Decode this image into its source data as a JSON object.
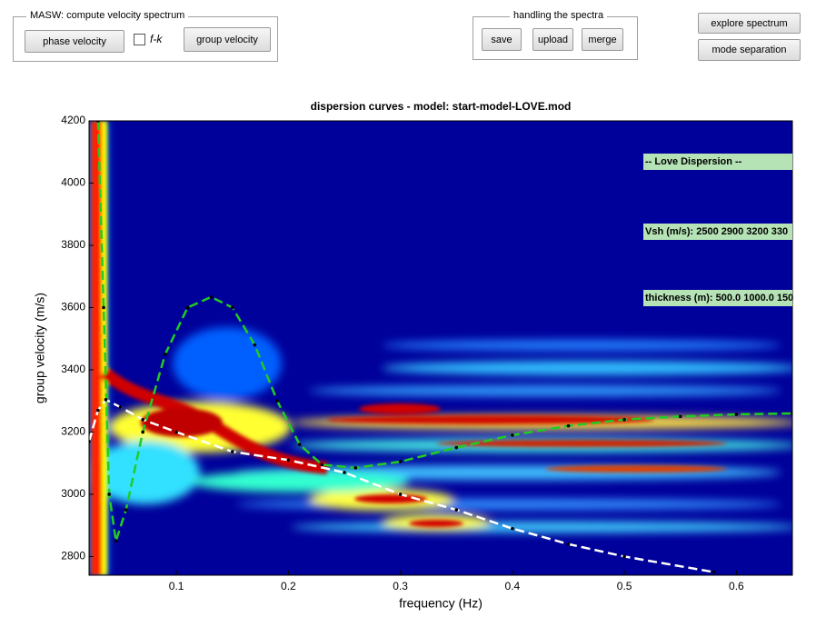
{
  "masw_panel": {
    "title": "MASW: compute velocity spectrum",
    "buttons": [
      "phase velocity",
      "group velocity"
    ],
    "checkbox": "f-k"
  },
  "spectra_panel": {
    "title": "handling the spectra",
    "buttons": [
      "save",
      "upload",
      "merge"
    ]
  },
  "side_buttons": [
    "explore spectrum",
    "mode separation"
  ],
  "chart_data": {
    "type": "line",
    "title": "dispersion curves - model: start-model-LOVE.mod",
    "xlabel": "frequency (Hz)",
    "ylabel": "group velocity (m/s)",
    "xlim": [
      0.022,
      0.65
    ],
    "ylim": [
      2740,
      4200
    ],
    "xticks": [
      0.1,
      0.2,
      0.3,
      0.4,
      0.5,
      0.6
    ],
    "yticks": [
      2800,
      3000,
      3200,
      3400,
      3600,
      3800,
      4000,
      4200
    ],
    "annotations": [
      "-- Love Dispersion --",
      "Vsh (m/s): 2500 2900 3200 330",
      "thickness (m): 500.0 1000.0 150"
    ],
    "series": [
      {
        "color": "#22cc22",
        "x": [
          0.03,
          0.035,
          0.04,
          0.046,
          0.055,
          0.07,
          0.09,
          0.11,
          0.131,
          0.15,
          0.17,
          0.19,
          0.21,
          0.23,
          0.26,
          0.3,
          0.35,
          0.4,
          0.45,
          0.5,
          0.55,
          0.6,
          0.65
        ],
        "values": [
          4200,
          3600,
          3000,
          2850,
          2950,
          3200,
          3450,
          3600,
          3634,
          3600,
          3480,
          3300,
          3160,
          3095,
          3085,
          3105,
          3150,
          3190,
          3220,
          3240,
          3250,
          3257,
          3260
        ]
      },
      {
        "color": "#ffffff",
        "x": [
          0.022,
          0.03,
          0.037,
          0.05,
          0.07,
          0.1,
          0.15,
          0.2,
          0.25,
          0.3,
          0.35,
          0.4,
          0.45,
          0.5,
          0.58
        ],
        "values": [
          3170,
          3270,
          3304,
          3280,
          3240,
          3200,
          3137,
          3110,
          3070,
          3000,
          2950,
          2890,
          2840,
          2800,
          2750
        ]
      }
    ]
  }
}
